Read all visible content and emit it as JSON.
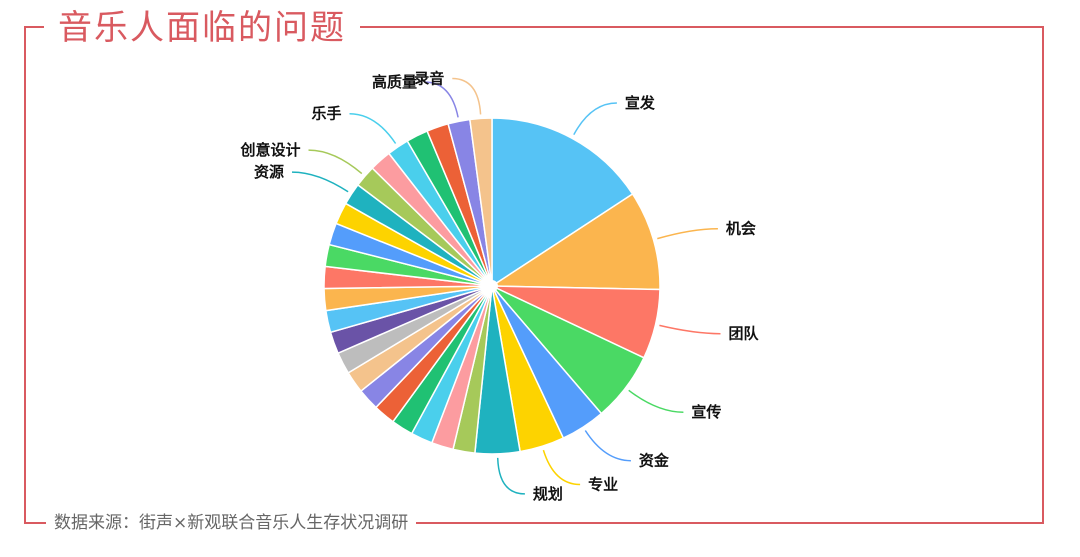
{
  "title": "音乐人面临的问题",
  "source": "数据来源：街声×新观联合音乐人生存状况调研",
  "chart_data": {
    "type": "pie",
    "title": "音乐人面临的问题",
    "slices": [
      {
        "label": "宣发",
        "value": 16.5,
        "color": "#56c3f5"
      },
      {
        "label": "机会",
        "value": 10.0,
        "color": "#fbb54e"
      },
      {
        "label": "团队",
        "value": 7.0,
        "color": "#fd7766"
      },
      {
        "label": "宣传",
        "value": 7.0,
        "color": "#4ad964"
      },
      {
        "label": "资金",
        "value": 4.5,
        "color": "#549dfb"
      },
      {
        "label": "专业",
        "value": 4.5,
        "color": "#fdd300"
      },
      {
        "label": "规划",
        "value": 4.5,
        "color": "#1fb2bf"
      },
      {
        "label": "",
        "value": 2.2,
        "color": "#a6c95a"
      },
      {
        "label": "",
        "value": 2.2,
        "color": "#fc9ca0"
      },
      {
        "label": "",
        "value": 2.2,
        "color": "#4acfec"
      },
      {
        "label": "",
        "value": 2.2,
        "color": "#20c173"
      },
      {
        "label": "",
        "value": 2.2,
        "color": "#ec6137"
      },
      {
        "label": "",
        "value": 2.2,
        "color": "#8885e5"
      },
      {
        "label": "",
        "value": 2.2,
        "color": "#f4c38c"
      },
      {
        "label": "",
        "value": 2.2,
        "color": "#bdbdbd"
      },
      {
        "label": "",
        "value": 2.2,
        "color": "#6a53a7"
      },
      {
        "label": "",
        "value": 2.2,
        "color": "#56c3f5"
      },
      {
        "label": "",
        "value": 2.2,
        "color": "#fbb54e"
      },
      {
        "label": "",
        "value": 2.2,
        "color": "#fd7766"
      },
      {
        "label": "",
        "value": 2.2,
        "color": "#4ad964"
      },
      {
        "label": "",
        "value": 2.2,
        "color": "#549dfb"
      },
      {
        "label": "",
        "value": 2.2,
        "color": "#fdd300"
      },
      {
        "label": "资源",
        "value": 2.2,
        "color": "#1fb2bf"
      },
      {
        "label": "创意设计",
        "value": 2.2,
        "color": "#a6c95a"
      },
      {
        "label": "",
        "value": 2.2,
        "color": "#fc9ca0"
      },
      {
        "label": "乐手",
        "value": 2.2,
        "color": "#4acfec"
      },
      {
        "label": "",
        "value": 2.2,
        "color": "#20c173"
      },
      {
        "label": "",
        "value": 2.2,
        "color": "#ec6137"
      },
      {
        "label": "高质量",
        "value": 2.2,
        "color": "#8885e5"
      },
      {
        "label": "录音",
        "value": 2.2,
        "color": "#f4c38c"
      }
    ]
  }
}
